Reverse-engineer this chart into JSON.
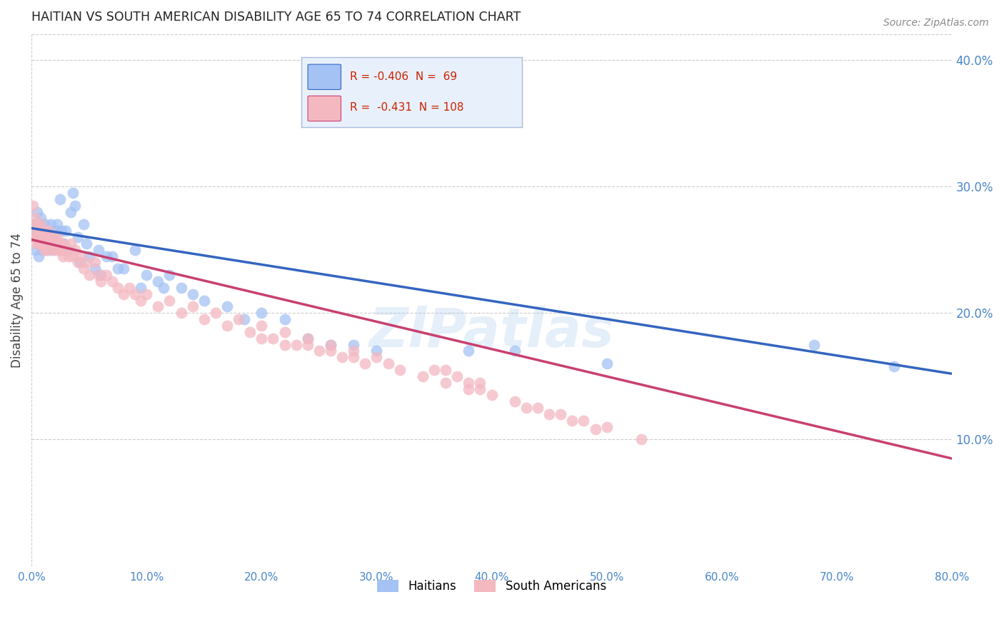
{
  "title": "HAITIAN VS SOUTH AMERICAN DISABILITY AGE 65 TO 74 CORRELATION CHART",
  "source": "Source: ZipAtlas.com",
  "ylabel": "Disability Age 65 to 74",
  "xlim": [
    0.0,
    0.8
  ],
  "ylim": [
    0.0,
    0.42
  ],
  "xticks": [
    0.0,
    0.1,
    0.2,
    0.3,
    0.4,
    0.5,
    0.6,
    0.7,
    0.8
  ],
  "yticks": [
    0.1,
    0.2,
    0.3,
    0.4
  ],
  "ytick_labels": [
    "10.0%",
    "20.0%",
    "30.0%",
    "40.0%"
  ],
  "xtick_labels": [
    "0.0%",
    "10.0%",
    "20.0%",
    "30.0%",
    "40.0%",
    "50.0%",
    "60.0%",
    "70.0%",
    "80.0%"
  ],
  "haitian_color": "#a4c2f4",
  "south_american_color": "#f4b8c1",
  "haitian_line_color": "#3465c0",
  "south_american_line_color": "#c94070",
  "haitian_R": -0.406,
  "haitian_N": 69,
  "south_american_R": -0.431,
  "south_american_N": 108,
  "background_color": "#ffffff",
  "grid_color": "#cccccc",
  "title_color": "#222222",
  "axis_label_color": "#4a86c8",
  "legend_box_color": "#e8f0fb",
  "legend_border_color": "#aabbdd",
  "haitian_scatter_x": [
    0.002,
    0.003,
    0.004,
    0.005,
    0.005,
    0.006,
    0.007,
    0.007,
    0.008,
    0.008,
    0.009,
    0.01,
    0.01,
    0.011,
    0.012,
    0.013,
    0.014,
    0.015,
    0.015,
    0.016,
    0.017,
    0.018,
    0.019,
    0.02,
    0.021,
    0.022,
    0.023,
    0.025,
    0.026,
    0.028,
    0.03,
    0.032,
    0.034,
    0.036,
    0.038,
    0.04,
    0.042,
    0.045,
    0.048,
    0.05,
    0.055,
    0.058,
    0.06,
    0.065,
    0.07,
    0.075,
    0.08,
    0.09,
    0.095,
    0.1,
    0.11,
    0.115,
    0.12,
    0.13,
    0.14,
    0.15,
    0.17,
    0.185,
    0.2,
    0.22,
    0.24,
    0.26,
    0.28,
    0.3,
    0.38,
    0.42,
    0.5,
    0.68,
    0.75
  ],
  "haitian_scatter_y": [
    0.27,
    0.25,
    0.265,
    0.28,
    0.26,
    0.245,
    0.255,
    0.27,
    0.26,
    0.275,
    0.25,
    0.265,
    0.255,
    0.26,
    0.27,
    0.255,
    0.25,
    0.265,
    0.26,
    0.255,
    0.27,
    0.255,
    0.25,
    0.26,
    0.265,
    0.27,
    0.255,
    0.29,
    0.265,
    0.255,
    0.265,
    0.25,
    0.28,
    0.295,
    0.285,
    0.26,
    0.24,
    0.27,
    0.255,
    0.245,
    0.235,
    0.25,
    0.23,
    0.245,
    0.245,
    0.235,
    0.235,
    0.25,
    0.22,
    0.23,
    0.225,
    0.22,
    0.23,
    0.22,
    0.215,
    0.21,
    0.205,
    0.195,
    0.2,
    0.195,
    0.18,
    0.175,
    0.175,
    0.17,
    0.17,
    0.17,
    0.16,
    0.175,
    0.158
  ],
  "south_american_scatter_x": [
    0.001,
    0.002,
    0.003,
    0.003,
    0.004,
    0.004,
    0.005,
    0.005,
    0.006,
    0.006,
    0.007,
    0.007,
    0.008,
    0.008,
    0.009,
    0.009,
    0.01,
    0.01,
    0.011,
    0.011,
    0.012,
    0.012,
    0.013,
    0.013,
    0.014,
    0.015,
    0.015,
    0.016,
    0.017,
    0.018,
    0.019,
    0.02,
    0.021,
    0.022,
    0.023,
    0.024,
    0.025,
    0.026,
    0.027,
    0.028,
    0.03,
    0.032,
    0.034,
    0.036,
    0.038,
    0.04,
    0.042,
    0.045,
    0.048,
    0.05,
    0.055,
    0.058,
    0.06,
    0.065,
    0.07,
    0.075,
    0.08,
    0.085,
    0.09,
    0.095,
    0.1,
    0.11,
    0.12,
    0.13,
    0.14,
    0.15,
    0.16,
    0.17,
    0.18,
    0.19,
    0.2,
    0.21,
    0.22,
    0.23,
    0.24,
    0.25,
    0.26,
    0.27,
    0.28,
    0.29,
    0.3,
    0.32,
    0.34,
    0.36,
    0.38,
    0.4,
    0.42,
    0.44,
    0.46,
    0.48,
    0.5,
    0.53,
    0.39,
    0.35,
    0.31,
    0.28,
    0.26,
    0.24,
    0.22,
    0.2,
    0.43,
    0.45,
    0.47,
    0.49,
    0.39,
    0.38,
    0.37,
    0.36
  ],
  "south_american_scatter_y": [
    0.285,
    0.27,
    0.26,
    0.275,
    0.265,
    0.255,
    0.27,
    0.26,
    0.265,
    0.255,
    0.265,
    0.26,
    0.255,
    0.27,
    0.26,
    0.255,
    0.265,
    0.255,
    0.26,
    0.25,
    0.265,
    0.255,
    0.26,
    0.25,
    0.255,
    0.265,
    0.255,
    0.26,
    0.255,
    0.25,
    0.26,
    0.255,
    0.25,
    0.26,
    0.255,
    0.25,
    0.255,
    0.25,
    0.245,
    0.255,
    0.25,
    0.245,
    0.255,
    0.245,
    0.25,
    0.24,
    0.245,
    0.235,
    0.24,
    0.23,
    0.24,
    0.23,
    0.225,
    0.23,
    0.225,
    0.22,
    0.215,
    0.22,
    0.215,
    0.21,
    0.215,
    0.205,
    0.21,
    0.2,
    0.205,
    0.195,
    0.2,
    0.19,
    0.195,
    0.185,
    0.19,
    0.18,
    0.185,
    0.175,
    0.18,
    0.17,
    0.175,
    0.165,
    0.17,
    0.16,
    0.165,
    0.155,
    0.15,
    0.145,
    0.14,
    0.135,
    0.13,
    0.125,
    0.12,
    0.115,
    0.11,
    0.1,
    0.145,
    0.155,
    0.16,
    0.165,
    0.17,
    0.175,
    0.175,
    0.18,
    0.125,
    0.12,
    0.115,
    0.108,
    0.14,
    0.145,
    0.15,
    0.155
  ],
  "haitian_line_x0": 0.0,
  "haitian_line_y0": 0.267,
  "haitian_line_x1": 0.8,
  "haitian_line_y1": 0.152,
  "south_american_line_x0": 0.0,
  "south_american_line_y0": 0.258,
  "south_american_line_x1": 0.8,
  "south_american_line_y1": 0.085
}
